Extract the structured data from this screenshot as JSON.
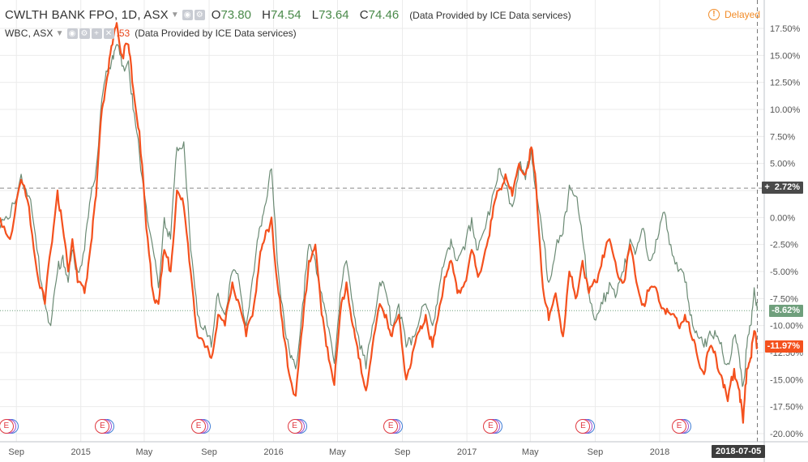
{
  "header": {
    "symbol": "CWLTH BANK FPO, 1D, ASX",
    "ohlc": [
      {
        "label": "O",
        "value": "73.80"
      },
      {
        "label": "H",
        "value": "74.54"
      },
      {
        "label": "L",
        "value": "73.64"
      },
      {
        "label": "C",
        "value": "74.46"
      }
    ],
    "source": "(Data Provided by ICE Data services)",
    "delayed_label": "Delayed",
    "delayed_icon": "!"
  },
  "compare": {
    "symbol": "WBC, ASX",
    "value_partial": ".53",
    "source": "(Data Provided by ICE Data services)"
  },
  "badges": {
    "cba": "-11.97%",
    "wbc": "-8.62%",
    "crosshair": "2.72%",
    "crosshair_plus": "+",
    "date": "2018-07-05"
  },
  "earnings_marker": "E",
  "colors": {
    "cba": "#f4511e",
    "wbc": "#6b8a74",
    "wbc_badge": "#6f9f7c",
    "grid": "#ebebeb",
    "axis_text": "#555555"
  },
  "chart_data": {
    "type": "line",
    "title": "",
    "xlabel": "",
    "ylabel": "",
    "ylim": [
      -20,
      17.5
    ],
    "yticks": [
      "17.50%",
      "15.00%",
      "12.50%",
      "10.00%",
      "7.50%",
      "5.00%",
      "2.50%",
      "0.00%",
      "-2.50%",
      "-5.00%",
      "-7.50%",
      "-10.00%",
      "-12.50%",
      "-15.00%",
      "-17.50%",
      "-20.00%"
    ],
    "ytick_values": [
      17.5,
      15,
      12.5,
      10,
      7.5,
      5,
      2.5,
      0,
      -2.5,
      -5,
      -7.5,
      -10,
      -12.5,
      -15,
      -17.5,
      -20
    ],
    "xticks": [
      {
        "label": "Sep",
        "date": "2014-09-01"
      },
      {
        "label": "2015",
        "date": "2015-01-01"
      },
      {
        "label": "May",
        "date": "2015-05-01"
      },
      {
        "label": "Sep",
        "date": "2015-09-01"
      },
      {
        "label": "2016",
        "date": "2016-01-01"
      },
      {
        "label": "May",
        "date": "2016-05-01"
      },
      {
        "label": "Sep",
        "date": "2016-09-01"
      },
      {
        "label": "2017",
        "date": "2017-01-01"
      },
      {
        "label": "May",
        "date": "2017-05-01"
      },
      {
        "label": "Sep",
        "date": "2017-09-01"
      },
      {
        "label": "2018",
        "date": "2018-01-01"
      }
    ],
    "xlim": [
      "2014-08-01",
      "2018-07-18"
    ],
    "hlines": [
      {
        "value": 2.72,
        "style": "crosshair"
      },
      {
        "value": -8.62,
        "style": "wbc-last"
      }
    ],
    "crosshair_date": "2018-07-05",
    "earnings_dates": [
      "2014-08-13",
      "2015-02-11",
      "2015-08-12",
      "2016-02-10",
      "2016-08-10",
      "2017-02-15",
      "2017-08-09",
      "2018-02-07"
    ],
    "series": [
      {
        "name": "CWLTH BANK FPO",
        "color": "#f4511e",
        "points": [
          [
            "2014-08-01",
            0
          ],
          [
            "2014-08-20",
            -2
          ],
          [
            "2014-09-10",
            3.5
          ],
          [
            "2014-09-25",
            1
          ],
          [
            "2014-10-10",
            -5
          ],
          [
            "2014-10-25",
            -8
          ],
          [
            "2014-11-05",
            -3
          ],
          [
            "2014-11-18",
            2.5
          ],
          [
            "2014-11-28",
            -1
          ],
          [
            "2014-12-08",
            -5
          ],
          [
            "2014-12-16",
            -2
          ],
          [
            "2014-12-26",
            -6
          ],
          [
            "2015-01-08",
            -7
          ],
          [
            "2015-01-20",
            -2.5
          ],
          [
            "2015-01-30",
            2
          ],
          [
            "2015-02-10",
            10
          ],
          [
            "2015-02-20",
            13
          ],
          [
            "2015-03-02",
            16
          ],
          [
            "2015-03-10",
            18
          ],
          [
            "2015-03-20",
            15
          ],
          [
            "2015-04-01",
            16
          ],
          [
            "2015-04-10",
            12
          ],
          [
            "2015-04-22",
            8
          ],
          [
            "2015-05-05",
            -1
          ],
          [
            "2015-05-18",
            -7
          ],
          [
            "2015-05-28",
            -8
          ],
          [
            "2015-06-08",
            -3
          ],
          [
            "2015-06-20",
            -5
          ],
          [
            "2015-07-02",
            2.5
          ],
          [
            "2015-07-15",
            1
          ],
          [
            "2015-07-28",
            -5
          ],
          [
            "2015-08-10",
            -11
          ],
          [
            "2015-08-24",
            -12
          ],
          [
            "2015-09-05",
            -13
          ],
          [
            "2015-09-18",
            -9
          ],
          [
            "2015-10-01",
            -10
          ],
          [
            "2015-10-15",
            -6
          ],
          [
            "2015-10-28",
            -8
          ],
          [
            "2015-11-10",
            -11
          ],
          [
            "2015-11-25",
            -8
          ],
          [
            "2015-12-05",
            -4
          ],
          [
            "2015-12-15",
            -2
          ],
          [
            "2015-12-28",
            0
          ],
          [
            "2016-01-08",
            -6
          ],
          [
            "2016-01-20",
            -11
          ],
          [
            "2016-02-02",
            -15
          ],
          [
            "2016-02-12",
            -16.5
          ],
          [
            "2016-02-25",
            -10
          ],
          [
            "2016-03-08",
            -4
          ],
          [
            "2016-03-20",
            -2.5
          ],
          [
            "2016-04-01",
            -9
          ],
          [
            "2016-04-12",
            -12
          ],
          [
            "2016-04-25",
            -15.5
          ],
          [
            "2016-05-06",
            -9
          ],
          [
            "2016-05-18",
            -6
          ],
          [
            "2016-05-30",
            -10
          ],
          [
            "2016-06-10",
            -13
          ],
          [
            "2016-06-24",
            -16
          ],
          [
            "2016-07-06",
            -12
          ],
          [
            "2016-07-20",
            -8
          ],
          [
            "2016-08-01",
            -9
          ],
          [
            "2016-08-12",
            -11
          ],
          [
            "2016-08-25",
            -9
          ],
          [
            "2016-09-08",
            -15
          ],
          [
            "2016-09-20",
            -12.5
          ],
          [
            "2016-10-03",
            -10.5
          ],
          [
            "2016-10-15",
            -9
          ],
          [
            "2016-10-28",
            -12
          ],
          [
            "2016-11-08",
            -9
          ],
          [
            "2016-11-20",
            -5.5
          ],
          [
            "2016-12-02",
            -4
          ],
          [
            "2016-12-14",
            -7
          ],
          [
            "2016-12-28",
            -6
          ],
          [
            "2017-01-10",
            -3
          ],
          [
            "2017-01-22",
            -5.5
          ],
          [
            "2017-02-05",
            -3
          ],
          [
            "2017-02-18",
            0
          ],
          [
            "2017-03-02",
            2.5
          ],
          [
            "2017-03-15",
            4
          ],
          [
            "2017-03-28",
            2
          ],
          [
            "2017-04-10",
            5
          ],
          [
            "2017-04-22",
            4
          ],
          [
            "2017-05-03",
            6.5
          ],
          [
            "2017-05-12",
            3
          ],
          [
            "2017-05-25",
            -6.5
          ],
          [
            "2017-06-05",
            -9.5
          ],
          [
            "2017-06-18",
            -7
          ],
          [
            "2017-07-02",
            -11
          ],
          [
            "2017-07-14",
            -5
          ],
          [
            "2017-07-26",
            -7.5
          ],
          [
            "2017-08-08",
            -4
          ],
          [
            "2017-08-20",
            -7
          ],
          [
            "2017-09-02",
            -6
          ],
          [
            "2017-09-15",
            -3.5
          ],
          [
            "2017-09-28",
            -2
          ],
          [
            "2017-10-12",
            -5
          ],
          [
            "2017-10-25",
            -6
          ],
          [
            "2017-11-06",
            -2.5
          ],
          [
            "2017-11-18",
            -6
          ],
          [
            "2017-12-01",
            -8
          ],
          [
            "2017-12-14",
            -6.5
          ],
          [
            "2017-12-28",
            -7
          ],
          [
            "2018-01-10",
            -8.5
          ],
          [
            "2018-01-22",
            -9
          ],
          [
            "2018-02-05",
            -10
          ],
          [
            "2018-02-18",
            -9
          ],
          [
            "2018-03-02",
            -11
          ],
          [
            "2018-03-14",
            -13
          ],
          [
            "2018-03-26",
            -14.5
          ],
          [
            "2018-04-06",
            -12
          ],
          [
            "2018-04-18",
            -13
          ],
          [
            "2018-04-30",
            -15
          ],
          [
            "2018-05-10",
            -17
          ],
          [
            "2018-05-22",
            -14
          ],
          [
            "2018-06-01",
            -16
          ],
          [
            "2018-06-08",
            -19
          ],
          [
            "2018-06-15",
            -14
          ],
          [
            "2018-06-22",
            -13
          ],
          [
            "2018-06-29",
            -10.5
          ],
          [
            "2018-07-05",
            -11.97
          ]
        ]
      },
      {
        "name": "WBC",
        "color": "#6b8a74",
        "points": [
          [
            "2014-08-01",
            -1
          ],
          [
            "2014-08-20",
            0
          ],
          [
            "2014-09-10",
            4
          ],
          [
            "2014-09-25",
            2
          ],
          [
            "2014-10-10",
            -3
          ],
          [
            "2014-10-25",
            -8
          ],
          [
            "2014-11-05",
            -10
          ],
          [
            "2014-11-18",
            -5
          ],
          [
            "2014-11-28",
            -3.5
          ],
          [
            "2014-12-08",
            -6
          ],
          [
            "2014-12-16",
            -3
          ],
          [
            "2014-12-26",
            -5
          ],
          [
            "2015-01-08",
            -3
          ],
          [
            "2015-01-20",
            2
          ],
          [
            "2015-01-30",
            4.5
          ],
          [
            "2015-02-10",
            11
          ],
          [
            "2015-02-20",
            13.5
          ],
          [
            "2015-03-02",
            15
          ],
          [
            "2015-03-10",
            16
          ],
          [
            "2015-03-20",
            14
          ],
          [
            "2015-04-01",
            14.5
          ],
          [
            "2015-04-10",
            10
          ],
          [
            "2015-04-22",
            6
          ],
          [
            "2015-05-05",
            1
          ],
          [
            "2015-05-18",
            -3
          ],
          [
            "2015-05-28",
            -6.5
          ],
          [
            "2015-06-08",
            0
          ],
          [
            "2015-06-20",
            -2
          ],
          [
            "2015-07-02",
            6.5
          ],
          [
            "2015-07-15",
            7
          ],
          [
            "2015-07-28",
            -3
          ],
          [
            "2015-08-10",
            -9
          ],
          [
            "2015-08-24",
            -10
          ],
          [
            "2015-09-05",
            -12
          ],
          [
            "2015-09-18",
            -7
          ],
          [
            "2015-10-01",
            -9
          ],
          [
            "2015-10-15",
            -5
          ],
          [
            "2015-10-28",
            -6
          ],
          [
            "2015-11-10",
            -10
          ],
          [
            "2015-11-25",
            -5
          ],
          [
            "2015-12-05",
            -1
          ],
          [
            "2015-12-15",
            1
          ],
          [
            "2015-12-28",
            4.5
          ],
          [
            "2016-01-08",
            -4
          ],
          [
            "2016-01-20",
            -9
          ],
          [
            "2016-02-02",
            -13
          ],
          [
            "2016-02-12",
            -14
          ],
          [
            "2016-02-25",
            -8
          ],
          [
            "2016-03-08",
            -2.5
          ],
          [
            "2016-03-20",
            -4
          ],
          [
            "2016-04-01",
            -7
          ],
          [
            "2016-04-12",
            -10
          ],
          [
            "2016-04-25",
            -13.5
          ],
          [
            "2016-05-06",
            -7
          ],
          [
            "2016-05-18",
            -4
          ],
          [
            "2016-05-30",
            -8
          ],
          [
            "2016-06-10",
            -11
          ],
          [
            "2016-06-24",
            -14
          ],
          [
            "2016-07-06",
            -10
          ],
          [
            "2016-07-20",
            -6
          ],
          [
            "2016-08-01",
            -7
          ],
          [
            "2016-08-12",
            -10
          ],
          [
            "2016-08-25",
            -8
          ],
          [
            "2016-09-08",
            -12
          ],
          [
            "2016-09-20",
            -11
          ],
          [
            "2016-10-03",
            -9.5
          ],
          [
            "2016-10-15",
            -8
          ],
          [
            "2016-10-28",
            -10
          ],
          [
            "2016-11-08",
            -7
          ],
          [
            "2016-11-20",
            -4
          ],
          [
            "2016-12-02",
            -2
          ],
          [
            "2016-12-14",
            -4
          ],
          [
            "2016-12-28",
            -3
          ],
          [
            "2017-01-10",
            0
          ],
          [
            "2017-01-22",
            -3
          ],
          [
            "2017-02-05",
            -1
          ],
          [
            "2017-02-18",
            2
          ],
          [
            "2017-03-02",
            4.5
          ],
          [
            "2017-03-15",
            3
          ],
          [
            "2017-03-28",
            1
          ],
          [
            "2017-04-10",
            5
          ],
          [
            "2017-04-22",
            3.5
          ],
          [
            "2017-05-03",
            6.5
          ],
          [
            "2017-05-12",
            2.5
          ],
          [
            "2017-05-25",
            -2
          ],
          [
            "2017-06-05",
            -6
          ],
          [
            "2017-06-18",
            -3
          ],
          [
            "2017-07-02",
            -1.5
          ],
          [
            "2017-07-14",
            3
          ],
          [
            "2017-07-26",
            2
          ],
          [
            "2017-08-08",
            -2
          ],
          [
            "2017-08-20",
            -7
          ],
          [
            "2017-09-02",
            -9.5
          ],
          [
            "2017-09-15",
            -8
          ],
          [
            "2017-09-28",
            -6
          ],
          [
            "2017-10-12",
            -7
          ],
          [
            "2017-10-25",
            -5
          ],
          [
            "2017-11-06",
            -2
          ],
          [
            "2017-11-18",
            -3
          ],
          [
            "2017-12-01",
            -1
          ],
          [
            "2017-12-14",
            -4
          ],
          [
            "2017-12-28",
            -2
          ],
          [
            "2018-01-10",
            0.5
          ],
          [
            "2018-01-22",
            -2.5
          ],
          [
            "2018-02-05",
            -5
          ],
          [
            "2018-02-18",
            -6
          ],
          [
            "2018-03-02",
            -9
          ],
          [
            "2018-03-14",
            -11
          ],
          [
            "2018-03-26",
            -12
          ],
          [
            "2018-04-06",
            -10.5
          ],
          [
            "2018-04-18",
            -11
          ],
          [
            "2018-04-30",
            -12.5
          ],
          [
            "2018-05-10",
            -13.5
          ],
          [
            "2018-05-22",
            -11
          ],
          [
            "2018-06-01",
            -13
          ],
          [
            "2018-06-08",
            -15.5
          ],
          [
            "2018-06-15",
            -12
          ],
          [
            "2018-06-22",
            -10
          ],
          [
            "2018-06-29",
            -6.5
          ],
          [
            "2018-07-05",
            -8.62
          ]
        ]
      }
    ]
  }
}
